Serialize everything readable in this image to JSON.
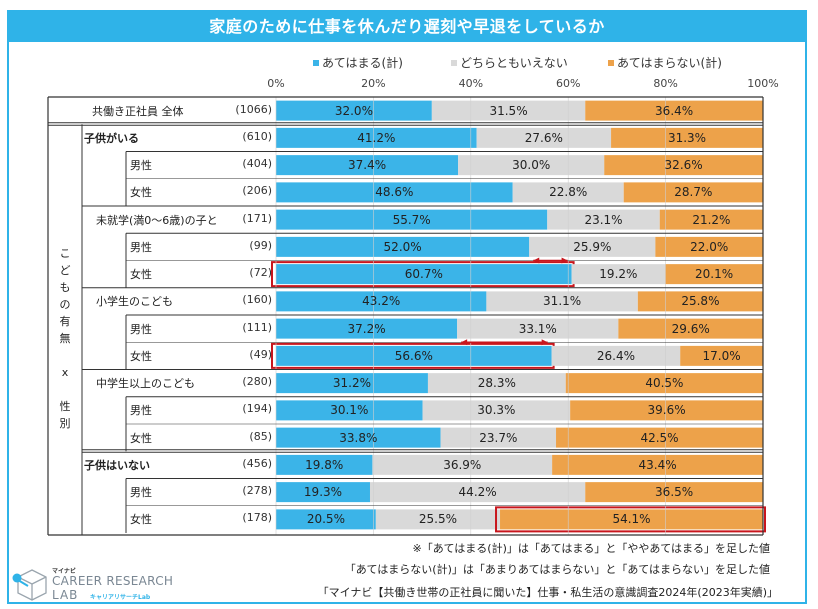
{
  "title": "家庭のために仕事を休んだり遅刻や早退をしているか",
  "chart_data": {
    "type": "bar",
    "orientation": "horizontal-stacked-100",
    "title": "家庭のために仕事を休んだり遅刻や早退をしているか",
    "xlim": [
      0,
      100
    ],
    "x_ticks": [
      "0%",
      "20%",
      "40%",
      "60%",
      "80%",
      "100%"
    ],
    "legend_position": "top",
    "series": [
      {
        "name": "あてはまる(計)",
        "color": "#3bb4e8"
      },
      {
        "name": "どちらともいえない",
        "color": "#d9d9d9"
      },
      {
        "name": "あてはまらない(計)",
        "color": "#eda24a"
      }
    ],
    "rows": [
      {
        "label": "共働き正社員 全体",
        "n": "(1066)",
        "level": 0,
        "bold": false,
        "values": [
          32.0,
          31.5,
          36.4
        ],
        "highlight": null
      },
      {
        "label": "子供がいる",
        "n": "(610)",
        "level": 1,
        "bold": true,
        "values": [
          41.2,
          27.6,
          31.3
        ],
        "highlight": null
      },
      {
        "label": "男性",
        "n": "(404)",
        "level": 2,
        "bold": false,
        "values": [
          37.4,
          30.0,
          32.6
        ],
        "highlight": null
      },
      {
        "label": "女性",
        "n": "(206)",
        "level": 2,
        "bold": false,
        "values": [
          48.6,
          22.8,
          28.7
        ],
        "highlight": null
      },
      {
        "label": "未就学(満0～6歳)の子と",
        "n": "(171)",
        "level": 1,
        "bold": false,
        "values": [
          55.7,
          23.1,
          21.2
        ],
        "highlight": null
      },
      {
        "label": "男性",
        "n": "(99)",
        "level": 2,
        "bold": false,
        "values": [
          52.0,
          25.9,
          22.0
        ],
        "highlight": null
      },
      {
        "label": "女性",
        "n": "(72)",
        "level": 2,
        "bold": false,
        "values": [
          60.7,
          19.2,
          20.1
        ],
        "highlight": 0
      },
      {
        "label": "小学生のこども",
        "n": "(160)",
        "level": 1,
        "bold": false,
        "values": [
          43.2,
          31.1,
          25.8
        ],
        "highlight": null
      },
      {
        "label": "男性",
        "n": "(111)",
        "level": 2,
        "bold": false,
        "values": [
          37.2,
          33.1,
          29.6
        ],
        "highlight": null
      },
      {
        "label": "女性",
        "n": "(49)",
        "level": 2,
        "bold": false,
        "values": [
          56.6,
          26.4,
          17.0
        ],
        "highlight": 0
      },
      {
        "label": "中学生以上のこども",
        "n": "(280)",
        "level": 1,
        "bold": false,
        "values": [
          31.2,
          28.3,
          40.5
        ],
        "highlight": null
      },
      {
        "label": "男性",
        "n": "(194)",
        "level": 2,
        "bold": false,
        "values": [
          30.1,
          30.3,
          39.6
        ],
        "highlight": null
      },
      {
        "label": "女性",
        "n": "(85)",
        "level": 2,
        "bold": false,
        "values": [
          33.8,
          23.7,
          42.5
        ],
        "highlight": null
      },
      {
        "label": "子供はいない",
        "n": "(456)",
        "level": 1,
        "bold": true,
        "values": [
          19.8,
          36.9,
          43.4
        ],
        "highlight": null
      },
      {
        "label": "男性",
        "n": "(278)",
        "level": 2,
        "bold": false,
        "values": [
          19.3,
          44.2,
          36.5
        ],
        "highlight": null
      },
      {
        "label": "女性",
        "n": "(178)",
        "level": 2,
        "bold": false,
        "values": [
          20.5,
          25.5,
          54.1
        ],
        "highlight": 2
      }
    ],
    "annotations": [
      {
        "type": "double-arrow",
        "between_rows": [
          5,
          6
        ],
        "from_value": 52.0,
        "to_value": 60.7,
        "color": "#c8161d"
      },
      {
        "type": "double-arrow",
        "between_rows": [
          8,
          9
        ],
        "from_value": 37.2,
        "to_value": 56.6,
        "color": "#c8161d"
      }
    ],
    "vertical_group_label": "こどもの有無×性別"
  },
  "vertical_label_chars": [
    "こ",
    "ど",
    "も",
    "の",
    "有",
    "無",
    "",
    "x",
    "",
    "性",
    "別"
  ],
  "notes": [
    "※「あてはまる(計)」は「あてはまる」と「ややあてはまる」を足した値",
    "「あてはまらない(計)」は「あまりあてはまらない」と「あてはまらない」を足した値",
    "「マイナビ【共働き世帯の正社員に聞いた】仕事・私生活の意識調査2024年(2023年実績)」"
  ],
  "logo": {
    "small": "マイナビ",
    "main": "CAREER RESEARCH",
    "lab": "LAB",
    "sub": "キャリアリサーチLab"
  }
}
